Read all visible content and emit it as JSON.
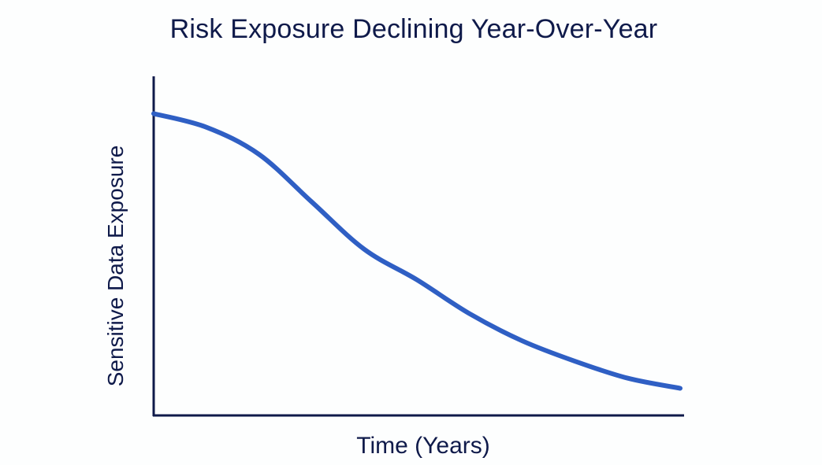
{
  "chart_data": {
    "type": "line",
    "title": "Risk Exposure Declining Year-Over-Year",
    "xlabel": "Time (Years)",
    "ylabel": "Sensitive Data Exposure",
    "x": [
      0,
      1,
      2,
      3,
      4,
      5,
      6,
      7,
      8,
      9,
      10
    ],
    "series": [
      {
        "name": "Sensitive Data Exposure",
        "values": [
          89,
          85,
          77,
          63,
          49,
          40,
          30,
          22,
          16,
          11,
          8
        ],
        "color": "#2f5fc4"
      }
    ],
    "xlim": [
      0,
      10
    ],
    "ylim": [
      0,
      100
    ],
    "grid": false,
    "legend": null,
    "ticks": "none"
  },
  "colors": {
    "axis": "#0f1a4a",
    "line": "#2f5fc4",
    "text": "#0f1a4a",
    "background": "#fdfefe"
  }
}
